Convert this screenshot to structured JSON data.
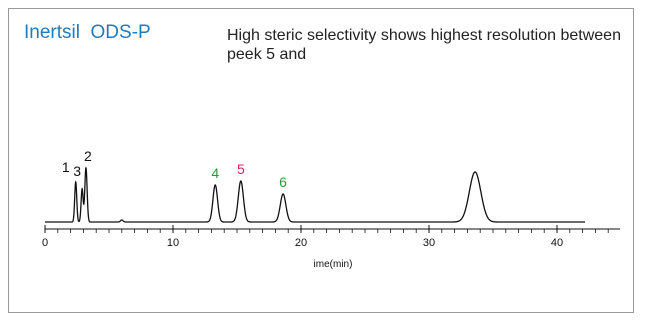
{
  "header": {
    "product_name": "Inertsil  ODS-P",
    "description": "High steric selectivity shows highest resolution between peek 5 and"
  },
  "colors": {
    "title": "#1f7bbf",
    "trace": "#111111",
    "peak_label_black": "#111111",
    "peak_label_green": "#2a9a3a",
    "peak_label_magenta": "#d0226b"
  },
  "chart_data": {
    "type": "line",
    "title": "",
    "xlabel": "ime(min)",
    "ylabel": "",
    "xlim": [
      0,
      45
    ],
    "x_tick_labels": [
      "0",
      "10",
      "20",
      "30",
      "40"
    ],
    "x_ticks": [
      0,
      10,
      20,
      30,
      40
    ],
    "trace_end_min": 42.2,
    "baseline": 0,
    "peaks": [
      {
        "label": "1",
        "time": 2.4,
        "height": 40,
        "width": 0.08,
        "label_color": "black"
      },
      {
        "label": "3",
        "time": 2.9,
        "height": 33,
        "width": 0.08,
        "label_color": "black"
      },
      {
        "label": "2",
        "time": 3.2,
        "height": 54,
        "width": 0.09,
        "label_color": "black"
      },
      {
        "label": "",
        "time": 6.0,
        "height": 2,
        "width": 0.1,
        "label_color": "black"
      },
      {
        "label": "4",
        "time": 13.3,
        "height": 37,
        "width": 0.18,
        "label_color": "green"
      },
      {
        "label": "5",
        "time": 15.3,
        "height": 41,
        "width": 0.2,
        "label_color": "magenta"
      },
      {
        "label": "6",
        "time": 18.6,
        "height": 28,
        "width": 0.22,
        "label_color": "green"
      },
      {
        "label": "",
        "time": 33.6,
        "height": 50,
        "width": 0.45,
        "label_color": "black"
      }
    ]
  }
}
